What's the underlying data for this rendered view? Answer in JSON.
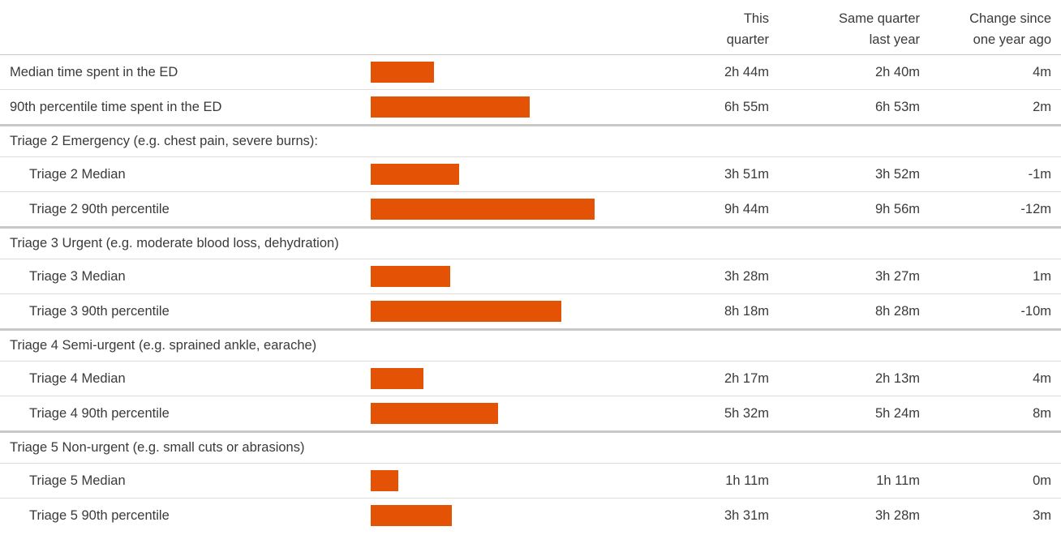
{
  "header": {
    "this_quarter": [
      "This",
      "quarter"
    ],
    "same_quarter": [
      "Same quarter",
      "last year"
    ],
    "change": [
      "Change since",
      "one year ago"
    ]
  },
  "colors": {
    "bar": "#e35205",
    "text": "#3a3a3a",
    "rule": "#c8c8c8"
  },
  "chart_data": {
    "type": "bar",
    "orientation": "horizontal",
    "unit": "minutes",
    "xlim": [
      0,
      620
    ],
    "rows": [
      {
        "kind": "metric",
        "label": "Median time spent in the ED",
        "this_quarter": "2h 44m",
        "same_quarter_last_year": "2h 40m",
        "change": "4m",
        "minutes": 164,
        "indent": false
      },
      {
        "kind": "metric",
        "label": "90th percentile time spent in the ED",
        "this_quarter": "6h 55m",
        "same_quarter_last_year": "6h 53m",
        "change": "2m",
        "minutes": 415,
        "indent": false
      },
      {
        "kind": "section",
        "label": "Triage 2 Emergency (e.g. chest pain, severe burns):"
      },
      {
        "kind": "metric",
        "label": "Triage 2 Median",
        "this_quarter": "3h 51m",
        "same_quarter_last_year": "3h 52m",
        "change": "-1m",
        "minutes": 231,
        "indent": true
      },
      {
        "kind": "metric",
        "label": "Triage 2 90th percentile",
        "this_quarter": "9h 44m",
        "same_quarter_last_year": "9h 56m",
        "change": "-12m",
        "minutes": 584,
        "indent": true
      },
      {
        "kind": "section",
        "label": "Triage 3 Urgent (e.g. moderate blood loss, dehydration)"
      },
      {
        "kind": "metric",
        "label": "Triage 3 Median",
        "this_quarter": "3h 28m",
        "same_quarter_last_year": "3h 27m",
        "change": "1m",
        "minutes": 208,
        "indent": true
      },
      {
        "kind": "metric",
        "label": "Triage 3 90th percentile",
        "this_quarter": "8h 18m",
        "same_quarter_last_year": "8h 28m",
        "change": "-10m",
        "minutes": 498,
        "indent": true
      },
      {
        "kind": "section",
        "label": "Triage 4 Semi-urgent (e.g. sprained ankle, earache)"
      },
      {
        "kind": "metric",
        "label": "Triage 4 Median",
        "this_quarter": "2h 17m",
        "same_quarter_last_year": "2h 13m",
        "change": "4m",
        "minutes": 137,
        "indent": true
      },
      {
        "kind": "metric",
        "label": "Triage 4 90th percentile",
        "this_quarter": "5h 32m",
        "same_quarter_last_year": "5h 24m",
        "change": "8m",
        "minutes": 332,
        "indent": true
      },
      {
        "kind": "section",
        "label": "Triage 5 Non-urgent (e.g. small cuts or abrasions)"
      },
      {
        "kind": "metric",
        "label": "Triage 5 Median",
        "this_quarter": "1h 11m",
        "same_quarter_last_year": "1h 11m",
        "change": "0m",
        "minutes": 71,
        "indent": true
      },
      {
        "kind": "metric",
        "label": "Triage 5 90th percentile",
        "this_quarter": "3h 31m",
        "same_quarter_last_year": "3h 28m",
        "change": "3m",
        "minutes": 211,
        "indent": true
      }
    ]
  }
}
